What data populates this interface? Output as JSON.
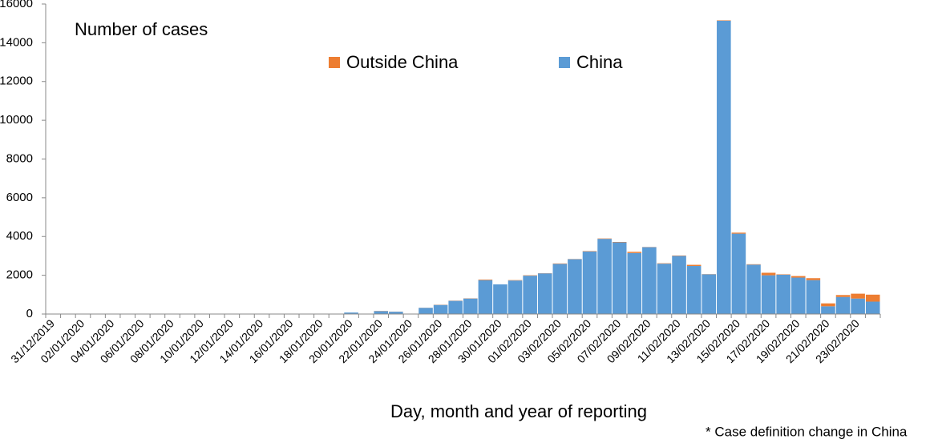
{
  "chart_data": {
    "type": "stacked-bar",
    "title": "Number of cases",
    "xlabel": "Day, month and year of reporting",
    "footnote": "* Case definition change in China",
    "categories": [
      "31/12/2019",
      null,
      "02/01/2020",
      null,
      "04/01/2020",
      null,
      "06/01/2020",
      null,
      "08/01/2020",
      null,
      "10/01/2020",
      null,
      "12/01/2020",
      null,
      "14/01/2020",
      null,
      "16/01/2020",
      null,
      "18/01/2020",
      null,
      "20/01/2020",
      null,
      "22/01/2020",
      null,
      "24/01/2020",
      null,
      "26/01/2020",
      null,
      "28/01/2020",
      null,
      "30/01/2020",
      null,
      "01/02/2020",
      null,
      "03/02/2020",
      null,
      "05/02/2020",
      null,
      "07/02/2020",
      null,
      "09/02/2020",
      null,
      "11/02/2020",
      null,
      "13/02/2020",
      null,
      "15/02/2020",
      null,
      "17/02/2020",
      null,
      "19/02/2020",
      null,
      "21/02/2020",
      null,
      "23/02/2020",
      null
    ],
    "series": [
      {
        "name": "Outside China",
        "color": "#ed7d31",
        "values": [
          0,
          0,
          0,
          0,
          0,
          0,
          0,
          0,
          0,
          0,
          0,
          0,
          0,
          0,
          0,
          0,
          0,
          0,
          0,
          0,
          0,
          0,
          10,
          5,
          0,
          5,
          10,
          10,
          10,
          30,
          0,
          20,
          20,
          10,
          20,
          10,
          20,
          20,
          20,
          60,
          10,
          20,
          20,
          60,
          10,
          20,
          50,
          20,
          130,
          20,
          80,
          100,
          150,
          100,
          250,
          360
        ]
      },
      {
        "name": "China",
        "color": "#5b9bd5",
        "values": [
          0,
          0,
          0,
          0,
          0,
          0,
          0,
          0,
          0,
          0,
          0,
          0,
          0,
          0,
          0,
          0,
          0,
          0,
          0,
          0,
          77,
          0,
          150,
          120,
          0,
          320,
          470,
          680,
          800,
          1750,
          1530,
          1730,
          1980,
          2100,
          2590,
          2830,
          3230,
          3880,
          3700,
          3150,
          3450,
          2600,
          3000,
          2480,
          2050,
          15140,
          4150,
          2550,
          2000,
          2030,
          1880,
          1750,
          400,
          880,
          800,
          640
        ]
      }
    ],
    "ylim": [
      0,
      16000
    ],
    "yticks": [
      0,
      2000,
      4000,
      6000,
      8000,
      10000,
      12000,
      14000,
      16000
    ],
    "grid": false
  }
}
